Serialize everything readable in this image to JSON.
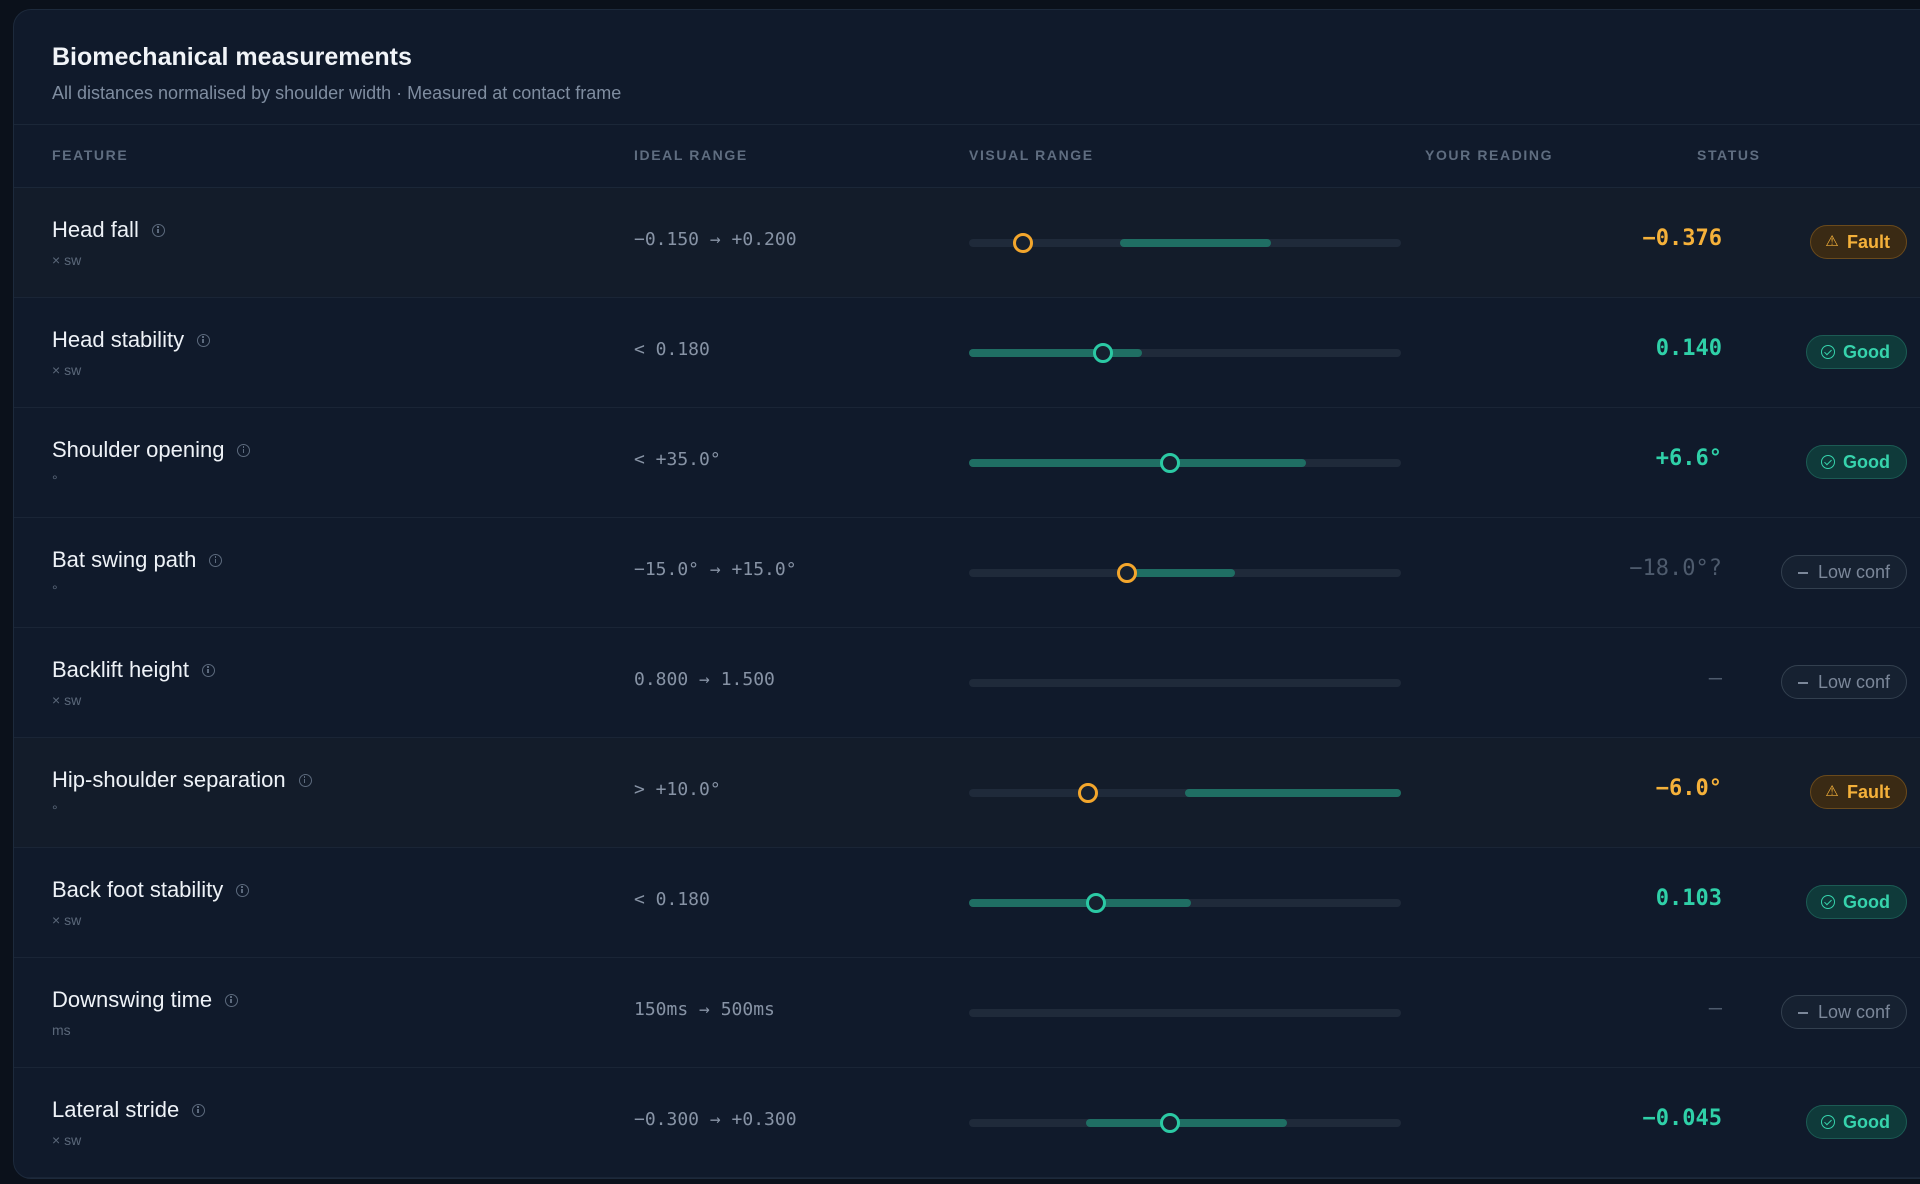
{
  "header": {
    "title": "Biomechanical measurements",
    "subtitle": "All distances normalised by shoulder width · Measured at contact frame"
  },
  "columns": {
    "feature": "FEATURE",
    "ideal": "IDEAL RANGE",
    "visual": "VISUAL RANGE",
    "reading": "YOUR READING",
    "status": "STATUS"
  },
  "colors": {
    "good": "#2fd0a8",
    "fault": "#f5b13a",
    "low": "#7b8799",
    "track": "#1f2a3a",
    "fill": "#1f6e63"
  },
  "icons": {
    "info": "info-icon",
    "good": "check-circle-icon",
    "fault": "warning-triangle-icon",
    "low": "minus-icon"
  },
  "rows": [
    {
      "name": "Head fall",
      "unit": "× sw",
      "ideal": "−0.150 → +0.200",
      "reading": "−0.376",
      "status": "fault",
      "badge": "Fault",
      "ideal_band": [
        0.35,
        0.7
      ],
      "marker": 0.125
    },
    {
      "name": "Head stability",
      "unit": "× sw",
      "ideal": "< 0.180",
      "reading": "0.140",
      "status": "good",
      "badge": "Good",
      "ideal_band": [
        0.0,
        0.4
      ],
      "marker": 0.31
    },
    {
      "name": "Shoulder opening",
      "unit": "°",
      "ideal": "< +35.0°",
      "reading": "+6.6°",
      "status": "good",
      "badge": "Good",
      "ideal_band": [
        0.0,
        0.78
      ],
      "marker": 0.465
    },
    {
      "name": "Bat swing path",
      "unit": "°",
      "ideal": "−15.0° → +15.0°",
      "reading": "−18.0°?",
      "status": "low",
      "badge": "Low conf",
      "ideal_band": [
        0.365,
        0.615
      ],
      "marker": 0.365,
      "marker_status": "fault"
    },
    {
      "name": "Backlift height",
      "unit": "× sw",
      "ideal": "0.800 → 1.500",
      "reading": "—",
      "status": "low",
      "badge": "Low conf",
      "ideal_band": null,
      "marker": null
    },
    {
      "name": "Hip-shoulder separation",
      "unit": "°",
      "ideal": "> +10.0°",
      "reading": "−6.0°",
      "status": "fault",
      "badge": "Fault",
      "ideal_band": [
        0.5,
        1.0
      ],
      "marker": 0.275
    },
    {
      "name": "Back foot stability",
      "unit": "× sw",
      "ideal": "< 0.180",
      "reading": "0.103",
      "status": "good",
      "badge": "Good",
      "ideal_band": [
        0.0,
        0.515
      ],
      "marker": 0.295
    },
    {
      "name": "Downswing time",
      "unit": "ms",
      "ideal": "150ms → 500ms",
      "reading": "—",
      "status": "low",
      "badge": "Low conf",
      "ideal_band": null,
      "marker": null
    },
    {
      "name": "Lateral stride",
      "unit": "× sw",
      "ideal": "−0.300 → +0.300",
      "reading": "−0.045",
      "status": "good",
      "badge": "Good",
      "ideal_band": [
        0.27,
        0.735
      ],
      "marker": 0.465
    }
  ]
}
